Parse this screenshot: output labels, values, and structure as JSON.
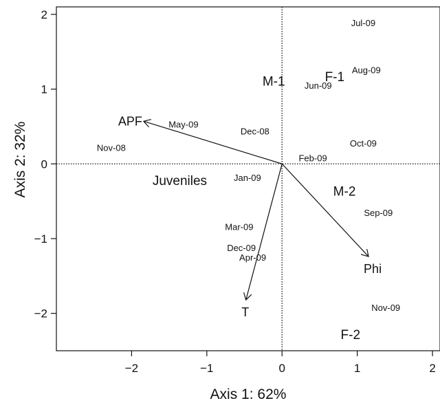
{
  "chart_data": {
    "type": "scatter",
    "title": "",
    "xlabel": "Axis 1: 62%",
    "ylabel": "Axis 2: 32%",
    "xlim": [
      -3.0,
      2.1
    ],
    "ylim": [
      -2.5,
      2.1
    ],
    "xticks": [
      -2,
      -1,
      0,
      1,
      2
    ],
    "yticks": [
      -2,
      -1,
      0,
      1,
      2
    ],
    "xtick_labels": [
      "−2",
      "−1",
      "0",
      "1",
      "2"
    ],
    "ytick_labels": [
      "−2",
      "−1",
      "0",
      "1",
      "2"
    ],
    "reference_lines": {
      "x": 0,
      "y": 0,
      "style": "dotted"
    },
    "sample_points": [
      {
        "label": "Jul-09",
        "x": 1.08,
        "y": 1.89
      },
      {
        "label": "Aug-09",
        "x": 1.12,
        "y": 1.26
      },
      {
        "label": "Jun-09",
        "x": 0.48,
        "y": 1.05
      },
      {
        "label": "May-09",
        "x": -1.31,
        "y": 0.53
      },
      {
        "label": "Dec-08",
        "x": -0.36,
        "y": 0.44
      },
      {
        "label": "Oct-09",
        "x": 1.08,
        "y": 0.28
      },
      {
        "label": "Feb-09",
        "x": 0.41,
        "y": 0.08
      },
      {
        "label": "Nov-08",
        "x": -2.27,
        "y": 0.22
      },
      {
        "label": "Jan-09",
        "x": -0.46,
        "y": -0.18
      },
      {
        "label": "Sep-09",
        "x": 1.28,
        "y": -0.65
      },
      {
        "label": "Mar-09",
        "x": -0.57,
        "y": -0.84
      },
      {
        "label": "Dec-09",
        "x": -0.54,
        "y": -1.12
      },
      {
        "label": "Apr-09",
        "x": -0.39,
        "y": -1.25
      },
      {
        "label": "Nov-09",
        "x": 1.38,
        "y": -1.92
      }
    ],
    "group_labels": [
      {
        "label": "M-1",
        "x": -0.11,
        "y": 1.11
      },
      {
        "label": "F-1",
        "x": 0.7,
        "y": 1.17
      },
      {
        "label": "Juveniles",
        "x": -1.36,
        "y": -0.22
      },
      {
        "label": "M-2",
        "x": 0.83,
        "y": -0.36
      },
      {
        "label": "F-2",
        "x": 0.91,
        "y": -2.28
      }
    ],
    "vectors": [
      {
        "label": "APF",
        "x": -1.84,
        "y": 0.57
      },
      {
        "label": "T",
        "x": -0.48,
        "y": -1.82
      },
      {
        "label": "Phi",
        "x": 1.15,
        "y": -1.24
      }
    ]
  }
}
